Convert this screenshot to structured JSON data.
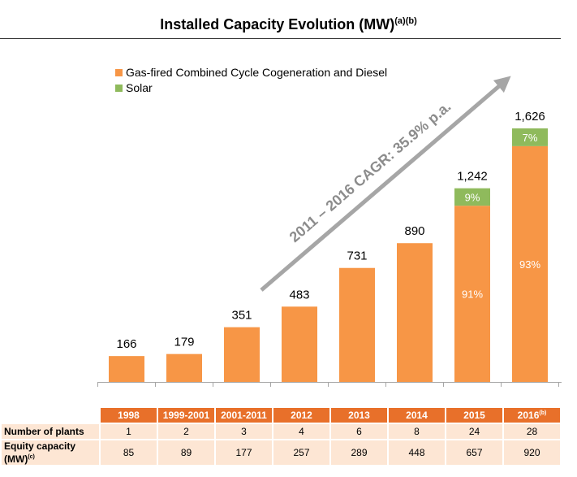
{
  "title": "Installed Capacity Evolution (MW)",
  "title_sup": "(a)(b)",
  "chart_data": {
    "type": "bar",
    "categories": [
      "1998",
      "1999-2001",
      "2001-2011",
      "2012",
      "2013",
      "2014",
      "2015",
      "2016"
    ],
    "category_sups": [
      "",
      "",
      "",
      "",
      "",
      "",
      "",
      "(b)"
    ],
    "series": [
      {
        "name": "Gas-fired Combined Cycle Cogeneration and Diesel",
        "color": "#f79646",
        "values": [
          166,
          179,
          351,
          483,
          731,
          890,
          1130,
          1512
        ]
      },
      {
        "name": "Solar",
        "color": "#8fba5c",
        "values": [
          0,
          0,
          0,
          0,
          0,
          0,
          112,
          114
        ]
      }
    ],
    "totals": [
      "166",
      "179",
      "351",
      "483",
      "731",
      "890",
      "1,242",
      "1,626"
    ],
    "segment_labels": [
      {
        "category": "2015",
        "base": "91%",
        "solar": "9%"
      },
      {
        "category": "2016",
        "base": "93%",
        "solar": "7%"
      }
    ],
    "annotation": "2011 – 2016 CAGR: 35.9% p.a.",
    "legend_position": "top-left",
    "ylim": [
      0,
      1626
    ],
    "grid": false
  },
  "table": {
    "rows": [
      {
        "label": "Number of plants",
        "label_sup": "",
        "values": [
          "1",
          "2",
          "3",
          "4",
          "6",
          "8",
          "24",
          "28"
        ]
      },
      {
        "label": "Equity capacity (MW)",
        "label_sup": "(c)",
        "values": [
          "85",
          "89",
          "177",
          "257",
          "289",
          "448",
          "657",
          "920"
        ]
      }
    ]
  }
}
